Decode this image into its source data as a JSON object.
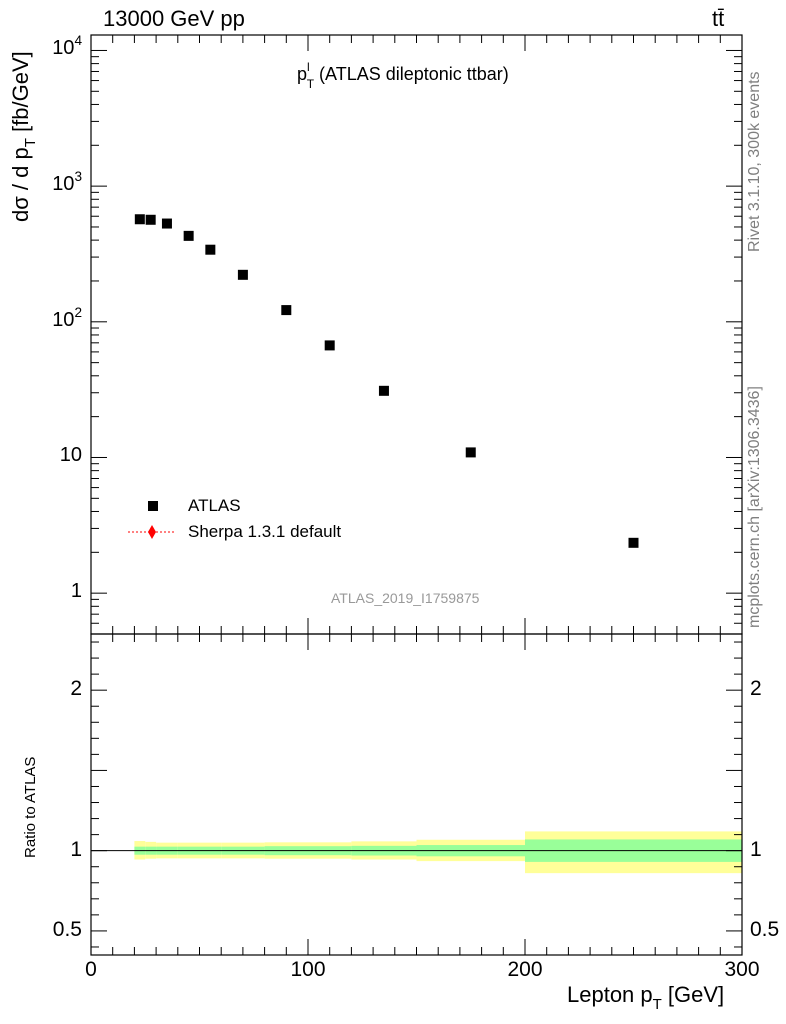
{
  "header": {
    "energy_label": "13000 GeV pp",
    "process_label": "tt̄"
  },
  "title": {
    "main": "p",
    "sup": "l",
    "sub": "T",
    "rest": " (ATLAS dileptonic ttbar)"
  },
  "side": {
    "rivet": "Rivet 3.1.10,  300k events",
    "mcplots": "mcplots.cern.ch [arXiv:1306.3436]"
  },
  "watermark": "ATLAS_2019_I1759875",
  "legend": {
    "data_label": "ATLAS",
    "mc_label": "Sherpa 1.3.1 default"
  },
  "axes": {
    "ylabel_main_1": "dσ / d p",
    "ylabel_main_sub": "T",
    "ylabel_main_2": " [fb/GeV]",
    "ylabel_ratio": "Ratio to ATLAS",
    "xlabel_1": "Lepton p",
    "xlabel_sub": "T",
    "xlabel_2": " [GeV]"
  },
  "colors": {
    "data": "#000000",
    "mc": "#ff0000",
    "band_inner": "#99ff99",
    "band_outer": "#ffff99"
  },
  "chart_data": [
    {
      "type": "scatter",
      "panel": "main",
      "xscale": "linear",
      "yscale": "log",
      "xlim": [
        0,
        300
      ],
      "ylim": [
        0.5,
        13000
      ],
      "yticks": [
        1,
        10,
        100,
        1000,
        10000
      ],
      "ytick_labels": [
        "1",
        "10",
        "10^2",
        "10^3",
        "10^4"
      ],
      "xticks": [
        0,
        100,
        200,
        300
      ],
      "xtick_labels": [
        "0",
        "100",
        "200",
        "300"
      ],
      "series": [
        {
          "name": "ATLAS",
          "x": [
            22.5,
            27.5,
            35,
            45,
            55,
            70,
            90,
            110,
            135,
            175,
            250
          ],
          "y": [
            570,
            565,
            530,
            430,
            340,
            222,
            122,
            67,
            31,
            10.9,
            2.35
          ]
        },
        {
          "name": "Sherpa 1.3.1 default",
          "x": [],
          "y": []
        }
      ]
    },
    {
      "type": "area",
      "panel": "ratio",
      "xlim": [
        0,
        300
      ],
      "ylim": [
        0.35,
        2.35
      ],
      "yticks": [
        0.5,
        1,
        2
      ],
      "ytick_labels": [
        "0.5",
        "1",
        "2"
      ],
      "reference": 1.0,
      "bins": [
        {
          "x0": 20,
          "x1": 25,
          "inner": [
            0.975,
            1.025
          ],
          "outer": [
            0.945,
            1.06
          ]
        },
        {
          "x0": 25,
          "x1": 30,
          "inner": [
            0.975,
            1.025
          ],
          "outer": [
            0.95,
            1.055
          ]
        },
        {
          "x0": 30,
          "x1": 40,
          "inner": [
            0.975,
            1.025
          ],
          "outer": [
            0.952,
            1.05
          ]
        },
        {
          "x0": 40,
          "x1": 50,
          "inner": [
            0.975,
            1.025
          ],
          "outer": [
            0.952,
            1.05
          ]
        },
        {
          "x0": 50,
          "x1": 60,
          "inner": [
            0.975,
            1.025
          ],
          "outer": [
            0.952,
            1.05
          ]
        },
        {
          "x0": 60,
          "x1": 80,
          "inner": [
            0.975,
            1.025
          ],
          "outer": [
            0.952,
            1.05
          ]
        },
        {
          "x0": 80,
          "x1": 100,
          "inner": [
            0.972,
            1.028
          ],
          "outer": [
            0.95,
            1.052
          ]
        },
        {
          "x0": 100,
          "x1": 120,
          "inner": [
            0.972,
            1.028
          ],
          "outer": [
            0.95,
            1.052
          ]
        },
        {
          "x0": 120,
          "x1": 150,
          "inner": [
            0.97,
            1.03
          ],
          "outer": [
            0.945,
            1.058
          ]
        },
        {
          "x0": 150,
          "x1": 200,
          "inner": [
            0.965,
            1.035
          ],
          "outer": [
            0.935,
            1.068
          ]
        },
        {
          "x0": 200,
          "x1": 300,
          "inner": [
            0.93,
            1.07
          ],
          "outer": [
            0.86,
            1.12
          ]
        }
      ]
    }
  ]
}
